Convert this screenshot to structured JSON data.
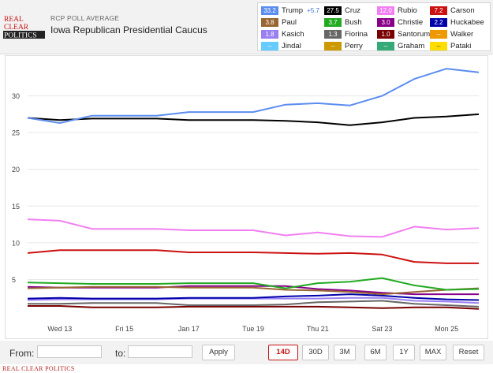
{
  "header": {
    "logo_text": [
      "REAL",
      "CLEAR",
      "POLITICS"
    ],
    "subtitle": "RCP POLL AVERAGE",
    "title": "Iowa Republican Presidential Caucus"
  },
  "legend": [
    {
      "name": "Trump",
      "value": "33.2",
      "color": "#5b8def",
      "change": "+5.7"
    },
    {
      "name": "Cruz",
      "value": "27.5",
      "color": "#000000"
    },
    {
      "name": "Rubio",
      "value": "12.0",
      "color": "#f27ff2"
    },
    {
      "name": "Carson",
      "value": "7.2",
      "color": "#cc1111"
    },
    {
      "name": "Paul",
      "value": "3.8",
      "color": "#996633"
    },
    {
      "name": "Bush",
      "value": "3.7",
      "color": "#22aa22"
    },
    {
      "name": "Christie",
      "value": "3.0",
      "color": "#880088"
    },
    {
      "name": "Huckabee",
      "value": "2.2",
      "color": "#0000aa"
    },
    {
      "name": "Kasich",
      "value": "1.8",
      "color": "#9a7ff2"
    },
    {
      "name": "Fiorina",
      "value": "1.3",
      "color": "#666666"
    },
    {
      "name": "Santorum",
      "value": "1.0",
      "color": "#7a0000"
    },
    {
      "name": "Walker",
      "value": "--",
      "color": "#ee9900"
    },
    {
      "name": "Jindal",
      "value": "--",
      "color": "#66ccff"
    },
    {
      "name": "Perry",
      "value": "--",
      "color": "#cc9900"
    },
    {
      "name": "Graham",
      "value": "--",
      "color": "#33aa77"
    },
    {
      "name": "Pataki",
      "value": "--",
      "color": "#ffdd00"
    }
  ],
  "chart_data": {
    "type": "line",
    "title": "Iowa Republican Presidential Caucus",
    "xlabel": "",
    "ylabel": "",
    "ylim": [
      0,
      35
    ],
    "yticks": [
      5,
      10,
      15,
      20,
      25,
      30
    ],
    "x": [
      0,
      1,
      2,
      3,
      4,
      5,
      6,
      7,
      8,
      9,
      10,
      11,
      12,
      13,
      14
    ],
    "x_tick_labels": [
      {
        "x": 1,
        "label": "Wed 13"
      },
      {
        "x": 3,
        "label": "Fri 15"
      },
      {
        "x": 5,
        "label": "Jan 17"
      },
      {
        "x": 7,
        "label": "Tue 19"
      },
      {
        "x": 9,
        "label": "Thu 21"
      },
      {
        "x": 11,
        "label": "Sat 23"
      },
      {
        "x": 13,
        "label": "Mon 25"
      }
    ],
    "series": [
      {
        "name": "Trump",
        "color": "#5b8def",
        "values": [
          27.0,
          26.3,
          27.3,
          27.3,
          27.3,
          27.8,
          27.8,
          27.8,
          28.8,
          29.0,
          28.7,
          30.0,
          32.3,
          33.7,
          33.2
        ]
      },
      {
        "name": "Cruz",
        "color": "#000000",
        "values": [
          27.0,
          26.7,
          26.9,
          26.9,
          26.9,
          26.7,
          26.7,
          26.7,
          26.6,
          26.4,
          26.0,
          26.4,
          27.0,
          27.2,
          27.5
        ]
      },
      {
        "name": "Rubio",
        "color": "#f27ff2",
        "values": [
          13.2,
          13.0,
          11.9,
          11.9,
          11.9,
          11.7,
          11.7,
          11.7,
          11.0,
          11.4,
          10.9,
          10.8,
          12.2,
          11.8,
          12.0
        ]
      },
      {
        "name": "Carson",
        "color": "#cc1111",
        "values": [
          8.6,
          9.0,
          9.0,
          9.0,
          9.0,
          8.7,
          8.7,
          8.7,
          8.6,
          8.5,
          8.6,
          8.4,
          7.4,
          7.2,
          7.2
        ]
      },
      {
        "name": "Bush",
        "color": "#22aa22",
        "values": [
          4.6,
          4.5,
          4.4,
          4.4,
          4.4,
          4.5,
          4.5,
          4.5,
          3.8,
          4.5,
          4.7,
          5.2,
          4.2,
          3.6,
          3.7
        ]
      },
      {
        "name": "Paul",
        "color": "#996633",
        "values": [
          3.8,
          3.9,
          4.0,
          4.0,
          4.0,
          3.9,
          3.9,
          3.9,
          3.6,
          3.5,
          3.3,
          3.0,
          3.3,
          3.6,
          3.8
        ]
      },
      {
        "name": "Christie",
        "color": "#880088",
        "values": [
          4.0,
          3.9,
          3.9,
          3.9,
          3.9,
          4.1,
          4.1,
          4.1,
          4.1,
          3.7,
          3.5,
          3.2,
          3.0,
          3.0,
          3.0
        ]
      },
      {
        "name": "Huckabee",
        "color": "#0000aa",
        "values": [
          2.4,
          2.5,
          2.4,
          2.4,
          2.4,
          2.5,
          2.5,
          2.5,
          2.7,
          2.8,
          3.0,
          2.8,
          2.5,
          2.3,
          2.2
        ]
      },
      {
        "name": "Kasich",
        "color": "#9a7ff2",
        "values": [
          2.2,
          2.3,
          2.3,
          2.3,
          2.3,
          2.4,
          2.4,
          2.4,
          2.4,
          2.4,
          2.5,
          2.5,
          2.1,
          2.0,
          1.8
        ]
      },
      {
        "name": "Fiorina",
        "color": "#666666",
        "values": [
          1.7,
          1.7,
          1.8,
          1.8,
          1.8,
          1.5,
          1.5,
          1.5,
          1.6,
          1.9,
          2.0,
          2.1,
          1.7,
          1.5,
          1.3
        ]
      },
      {
        "name": "Santorum",
        "color": "#7a0000",
        "values": [
          1.4,
          1.4,
          1.2,
          1.2,
          1.2,
          1.3,
          1.3,
          1.3,
          1.3,
          1.3,
          1.2,
          1.1,
          1.2,
          1.2,
          1.0
        ]
      }
    ]
  },
  "footer": {
    "from_label": "From:",
    "to_label": "to:",
    "from_value": "",
    "to_value": "",
    "apply_label": "Apply",
    "ranges": [
      "14D",
      "30D",
      "3M",
      "6M",
      "1Y",
      "MAX"
    ],
    "active_range": "14D",
    "reset_label": "Reset"
  },
  "credit": "REAL CLEAR POLITICS"
}
